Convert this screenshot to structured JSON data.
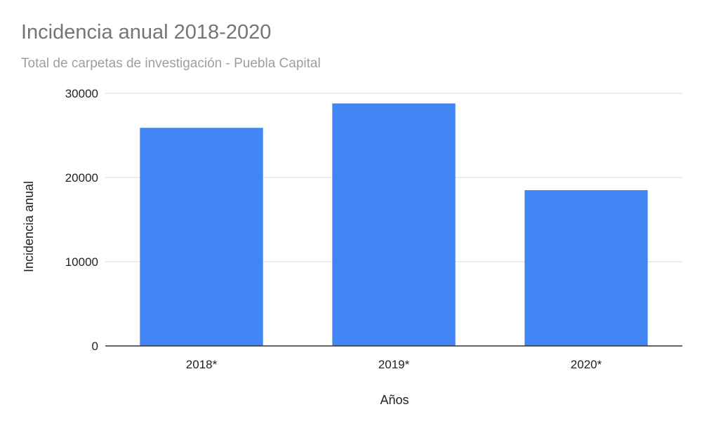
{
  "chart_data": {
    "type": "bar",
    "title": "Incidencia anual 2018-2020",
    "subtitle": "Total de carpetas de investigación - Puebla Capital",
    "xlabel": "Años",
    "ylabel": "Incidencia anual",
    "categories": [
      "2018*",
      "2019*",
      "2020*"
    ],
    "values": [
      25900,
      28800,
      18500
    ],
    "ylim": [
      0,
      30000
    ],
    "yticks": [
      0,
      10000,
      20000,
      30000
    ],
    "grid": true,
    "legend": "none",
    "bar_color": "#4285f4"
  }
}
